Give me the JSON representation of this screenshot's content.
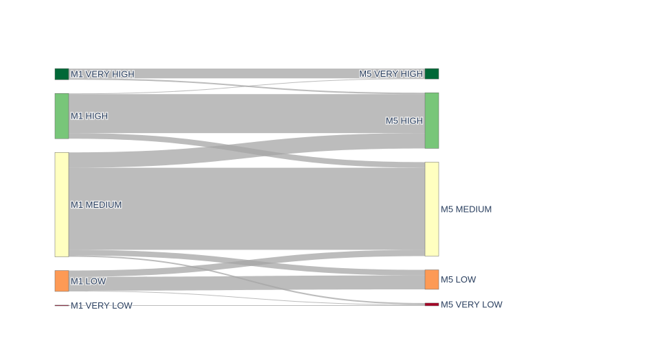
{
  "chart_data": {
    "type": "sankey",
    "title": "",
    "colors": {
      "link": "#a6a6a6",
      "label": "#2a3f5f",
      "very_high": "#006837",
      "high": "#78c679",
      "medium": "#ffffc0",
      "low": "#fd9a55",
      "very_low": "#a50026"
    },
    "nodes": [
      {
        "id": "m1_vh",
        "label": "M1 VERY HIGH",
        "column": 0,
        "color": "#006837"
      },
      {
        "id": "m1_h",
        "label": "M1 HIGH",
        "column": 0,
        "color": "#78c679"
      },
      {
        "id": "m1_m",
        "label": "M1 MEDIUM",
        "column": 0,
        "color": "#ffffc0"
      },
      {
        "id": "m1_l",
        "label": "M1 LOW",
        "column": 0,
        "color": "#fd9a55"
      },
      {
        "id": "m1_vl",
        "label": "M1 VERY LOW",
        "column": 0,
        "color": "#a50026"
      },
      {
        "id": "m5_vh",
        "label": "M5 VERY HIGH",
        "column": 1,
        "color": "#006837"
      },
      {
        "id": "m5_h",
        "label": "M5 HIGH",
        "column": 1,
        "color": "#78c679"
      },
      {
        "id": "m5_m",
        "label": "M5 MEDIUM",
        "column": 1,
        "color": "#ffffc0"
      },
      {
        "id": "m5_l",
        "label": "M5 LOW",
        "column": 1,
        "color": "#fd9a55"
      },
      {
        "id": "m5_vl",
        "label": "M5 VERY LOW",
        "column": 1,
        "color": "#a50026"
      }
    ],
    "links": [
      {
        "source": "m1_vh",
        "target": "m5_vh",
        "value": 14
      },
      {
        "source": "m1_vh",
        "target": "m5_h",
        "value": 2
      },
      {
        "source": "m1_h",
        "target": "m5_vh",
        "value": 1
      },
      {
        "source": "m1_h",
        "target": "m5_h",
        "value": 56
      },
      {
        "source": "m1_h",
        "target": "m5_m",
        "value": 8
      },
      {
        "source": "m1_m",
        "target": "m5_h",
        "value": 22
      },
      {
        "source": "m1_m",
        "target": "m5_m",
        "value": 118
      },
      {
        "source": "m1_m",
        "target": "m5_l",
        "value": 8
      },
      {
        "source": "m1_m",
        "target": "m5_vl",
        "value": 2
      },
      {
        "source": "m1_l",
        "target": "m5_m",
        "value": 9
      },
      {
        "source": "m1_l",
        "target": "m5_l",
        "value": 20
      },
      {
        "source": "m1_l",
        "target": "m5_vl",
        "value": 1
      },
      {
        "source": "m1_vl",
        "target": "m5_vl",
        "value": 1
      }
    ]
  }
}
